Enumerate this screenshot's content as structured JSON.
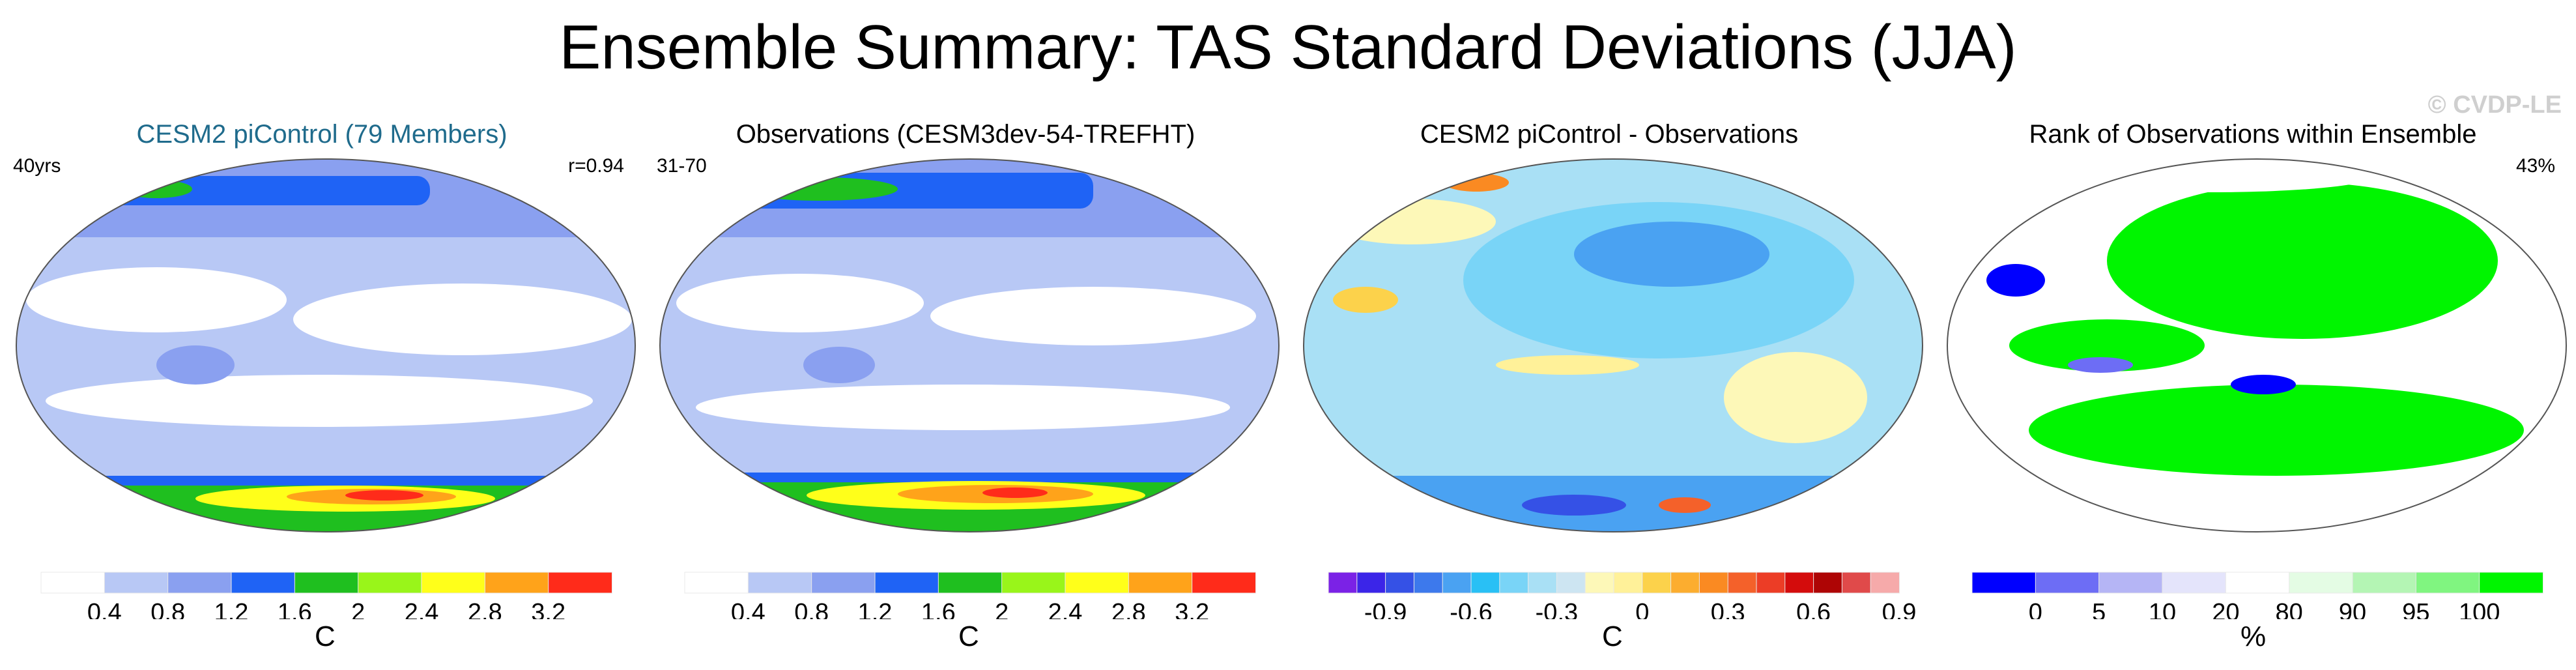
{
  "title": "Ensemble Summary: TAS Standard Deviations (JJA)",
  "watermark": "© CVDP-LE",
  "colors": {
    "stdev": [
      "#ffffff",
      "#b8c8f5",
      "#8aa0f0",
      "#1f63f5",
      "#1fbf1f",
      "#99f51a",
      "#ffff1a",
      "#ffa31a",
      "#ff2b1a"
    ],
    "diff": [
      "#7b22e6",
      "#3b25e8",
      "#3551e6",
      "#3d79ec",
      "#4aa2f2",
      "#29c0f5",
      "#79d4f7",
      "#a9e0f5",
      "#cde5f2",
      "#fdf8b8",
      "#fff199",
      "#fcd24b",
      "#fcad2f",
      "#fa8a22",
      "#f4612a",
      "#ec3d26",
      "#d40c0c",
      "#ae0505",
      "#e04a4a",
      "#f6aaaa"
    ],
    "rank": [
      "#0000ff",
      "#6d6df5",
      "#b5b5f5",
      "#e4e4fb",
      "#ffffff",
      "#e4fce4",
      "#b4f5b4",
      "#80f580",
      "#00f500"
    ]
  },
  "panels": [
    {
      "title": "CESM2 piControl (79 Members)",
      "title_color": "#1f6b8c",
      "left_label": "40yrs",
      "right_label": "r=0.94",
      "unit": "C"
    },
    {
      "title": "Observations (CESM3dev-54-TREFHT)",
      "title_color": "#000000",
      "left_label": "31-70",
      "right_label": "",
      "unit": "C"
    },
    {
      "title": "CESM2 piControl - Observations",
      "title_color": "#000000",
      "left_label": "",
      "right_label": "",
      "unit": "C"
    },
    {
      "title": "Rank of Observations within Ensemble",
      "title_color": "#000000",
      "left_label": "",
      "right_label": "43%",
      "unit": "%"
    }
  ],
  "chart_data": [
    {
      "type": "heatmap",
      "title": "CESM2 piControl (79 Members)",
      "colorbar_levels": [
        0.4,
        0.8,
        1.2,
        1.6,
        2,
        2.4,
        2.8,
        3.2
      ],
      "colorbar_labels": [
        "0.4",
        "0.8",
        "1.2",
        "1.6",
        "2",
        "2.4",
        "2.8",
        "3.2"
      ],
      "units": "C",
      "annotations": [
        "40yrs",
        "r=0.94"
      ]
    },
    {
      "type": "heatmap",
      "title": "Observations (CESM3dev-54-TREFHT)",
      "colorbar_levels": [
        0.4,
        0.8,
        1.2,
        1.6,
        2,
        2.4,
        2.8,
        3.2
      ],
      "colorbar_labels": [
        "0.4",
        "0.8",
        "1.2",
        "1.6",
        "2",
        "2.4",
        "2.8",
        "3.2"
      ],
      "units": "C",
      "annotations": [
        "31-70"
      ]
    },
    {
      "type": "heatmap",
      "title": "CESM2 piControl - Observations",
      "colorbar_levels": [
        -1.0,
        -0.9,
        -0.8,
        -0.7,
        -0.6,
        -0.5,
        -0.4,
        -0.3,
        -0.2,
        -0.1,
        0,
        0.1,
        0.2,
        0.3,
        0.4,
        0.5,
        0.6,
        0.7,
        0.8,
        0.9,
        1.0
      ],
      "colorbar_labels": [
        "-0.9",
        "-0.6",
        "-0.3",
        "0",
        "0.3",
        "0.6",
        "0.9"
      ],
      "units": "C"
    },
    {
      "type": "heatmap",
      "title": "Rank of Observations within Ensemble",
      "colorbar_levels": [
        0,
        5,
        10,
        20,
        80,
        90,
        95,
        100
      ],
      "colorbar_labels": [
        "0",
        "5",
        "10",
        "20",
        "80",
        "90",
        "95",
        "100"
      ],
      "units": "%",
      "annotations": [
        "43%"
      ]
    }
  ]
}
